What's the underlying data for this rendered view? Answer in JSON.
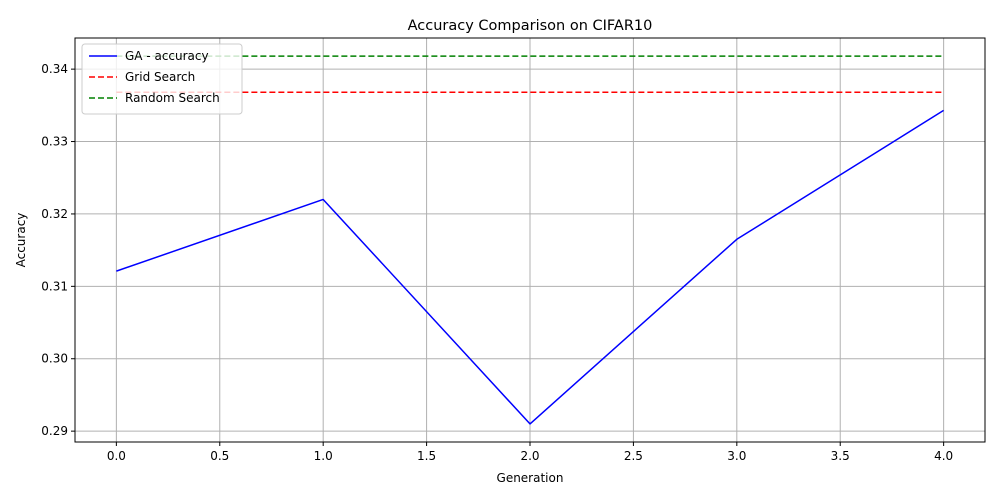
{
  "chart_data": {
    "type": "line",
    "title": "Accuracy Comparison on CIFAR10",
    "xlabel": "Generation",
    "ylabel": "Accuracy",
    "xlim": [
      -0.2,
      4.2
    ],
    "ylim": [
      0.2885,
      0.3443
    ],
    "xticks": [
      0.0,
      0.5,
      1.0,
      1.5,
      2.0,
      2.5,
      3.0,
      3.5,
      4.0
    ],
    "xtick_labels": [
      "0.0",
      "0.5",
      "1.0",
      "1.5",
      "2.0",
      "2.5",
      "3.0",
      "3.5",
      "4.0"
    ],
    "yticks": [
      0.29,
      0.3,
      0.31,
      0.32,
      0.33,
      0.34
    ],
    "ytick_labels": [
      "0.29",
      "0.30",
      "0.31",
      "0.32",
      "0.33",
      "0.34"
    ],
    "grid": true,
    "legend_position": "top-left",
    "series": [
      {
        "name": "GA - accuracy",
        "color": "#0000ff",
        "style": "solid",
        "x": [
          0,
          1,
          2,
          3,
          4
        ],
        "y": [
          0.3121,
          0.322,
          0.291,
          0.3165,
          0.3343
        ]
      },
      {
        "name": "Grid Search",
        "color": "#ff0000",
        "style": "dashed",
        "x": [
          0,
          4
        ],
        "y": [
          0.3368,
          0.3368
        ]
      },
      {
        "name": "Random Search",
        "color": "#008000",
        "style": "dashed",
        "x": [
          0,
          4
        ],
        "y": [
          0.3418,
          0.3418
        ]
      }
    ]
  }
}
